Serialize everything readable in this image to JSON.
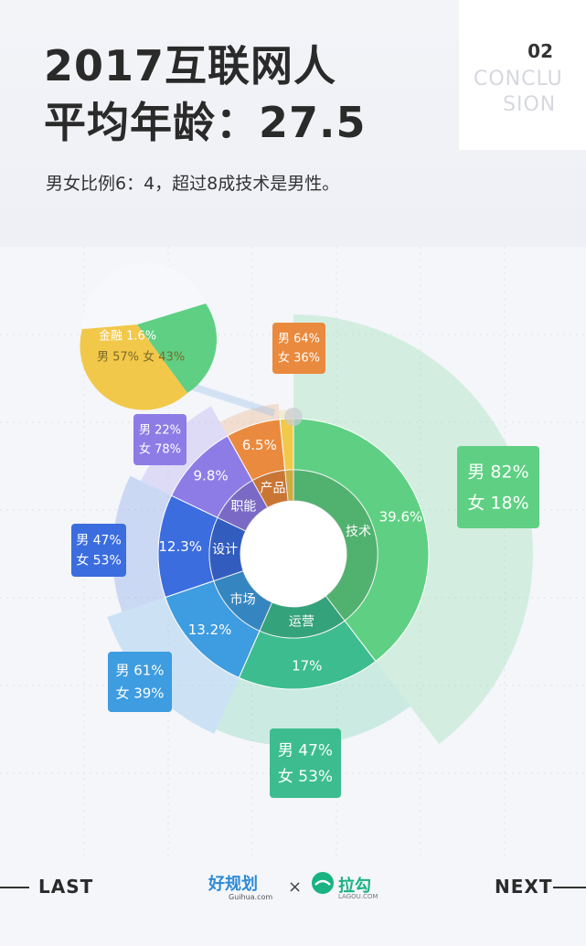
{
  "header": {
    "title_line1": "2017互联网人",
    "title_line2": "平均年龄：27.5",
    "subtitle": "男女比例6：4，超过8成技术是男性。"
  },
  "card": {
    "number": "02",
    "word_line1": "CONCLU",
    "word_line2": "SION"
  },
  "chart_data": {
    "type": "pie",
    "categories": [
      "技术",
      "运营",
      "市场",
      "设计",
      "职能",
      "产品",
      "金融"
    ],
    "values": [
      39.6,
      17,
      13.2,
      12.3,
      9.8,
      6.5,
      1.6
    ],
    "value_labels": [
      "39.6%",
      "17%",
      "13.2%",
      "12.3%",
      "9.8%",
      "6.5%",
      "1.6%"
    ],
    "gender": [
      {
        "category": "技术",
        "male": 82,
        "female": 18,
        "male_label": "男 82%",
        "female_label": "女 18%"
      },
      {
        "category": "运营",
        "male": 47,
        "female": 53,
        "male_label": "男 47%",
        "female_label": "女 53%"
      },
      {
        "category": "市场",
        "male": 61,
        "female": 39,
        "male_label": "男 61%",
        "female_label": "女 39%"
      },
      {
        "category": "设计",
        "male": 47,
        "female": 53,
        "male_label": "男 47%",
        "female_label": "女 53%"
      },
      {
        "category": "职能",
        "male": 22,
        "female": 78,
        "male_label": "男 22%",
        "female_label": "女 78%"
      },
      {
        "category": "产品",
        "male": 64,
        "female": 36,
        "male_label": "男 64%",
        "female_label": "女 36%"
      },
      {
        "category": "金融",
        "male": 57,
        "female": 43,
        "male_label": "男 57%",
        "female_label": "女 43%"
      }
    ],
    "colors": {
      "技术": "#5fd083",
      "运营": "#3dbd8f",
      "市场": "#3e9ce0",
      "设计": "#3b6ddf",
      "职能": "#8e7ce6",
      "产品": "#ea8a3e",
      "金融": "#f2c84a"
    },
    "finance_callout": {
      "label": "金融 1.6%",
      "gender_text": "男 57%  女 43%"
    }
  },
  "footer": {
    "prev_label": "LAST",
    "next_label": "NEXT",
    "logo_left_name": "好规划",
    "logo_left_sub": "Guihua.com",
    "separator": "×",
    "logo_right_name": "拉勾",
    "logo_right_sub": "LAGOU.COM"
  }
}
